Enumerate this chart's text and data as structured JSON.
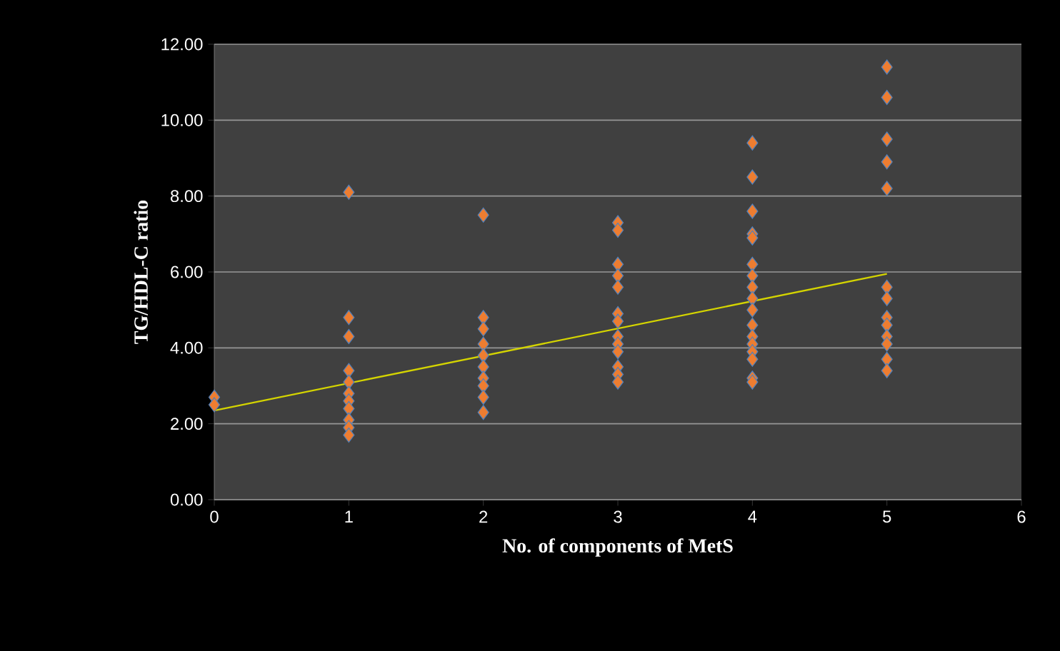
{
  "chart_data": {
    "type": "scatter",
    "xlabel": "No.  of components of MetS",
    "ylabel": "TG/HDL-C ratio",
    "xlim": [
      0,
      6
    ],
    "xticks": [
      0,
      1,
      2,
      3,
      4,
      5,
      6
    ],
    "ylim": [
      0,
      12
    ],
    "yticks": [
      {
        "value": 0,
        "label": "0.00"
      },
      {
        "value": 2,
        "label": "2.00"
      },
      {
        "value": 4,
        "label": "4.00"
      },
      {
        "value": 6,
        "label": "6.00"
      },
      {
        "value": 8,
        "label": "8.00"
      },
      {
        "value": 10,
        "label": "10.00"
      },
      {
        "value": 12,
        "label": "12.00"
      }
    ],
    "grid": "y",
    "marker": "diamond",
    "series": [
      {
        "color": "#ed7d31",
        "x": [
          0,
          0,
          1,
          1,
          1,
          1,
          1,
          1,
          1,
          1,
          1,
          1,
          1,
          2,
          2,
          2,
          2,
          2,
          2,
          2,
          2,
          2,
          2,
          3,
          3,
          3,
          3,
          3,
          3,
          3,
          3,
          3,
          3,
          3,
          3,
          3,
          4,
          4,
          4,
          4,
          4,
          4,
          4,
          4,
          4,
          4,
          4,
          4,
          4,
          4,
          4,
          4,
          4,
          5,
          5,
          5,
          5,
          5,
          5,
          5,
          5,
          5,
          5,
          5,
          5,
          5
        ],
        "values": [
          2.7,
          2.5,
          8.1,
          4.8,
          4.3,
          3.4,
          3.1,
          2.8,
          2.6,
          2.4,
          2.1,
          1.9,
          1.7,
          7.5,
          4.8,
          4.5,
          4.1,
          3.8,
          3.5,
          3.2,
          3.0,
          2.7,
          2.3,
          7.3,
          7.1,
          6.2,
          5.9,
          5.6,
          4.9,
          4.7,
          4.3,
          4.1,
          3.9,
          3.5,
          3.3,
          3.1,
          9.4,
          8.5,
          7.6,
          7.0,
          6.9,
          6.2,
          5.9,
          5.6,
          5.3,
          5.0,
          4.6,
          4.3,
          4.1,
          3.9,
          3.7,
          3.2,
          3.1,
          11.4,
          10.6,
          9.5,
          8.9,
          8.2,
          5.6,
          5.3,
          4.8,
          4.6,
          4.3,
          4.1,
          3.7,
          3.4
        ]
      },
      {
        "type": "line",
        "color": "#d4d400",
        "x": [
          0,
          5
        ],
        "values": [
          2.35,
          5.95
        ],
        "marker": "none"
      }
    ]
  }
}
